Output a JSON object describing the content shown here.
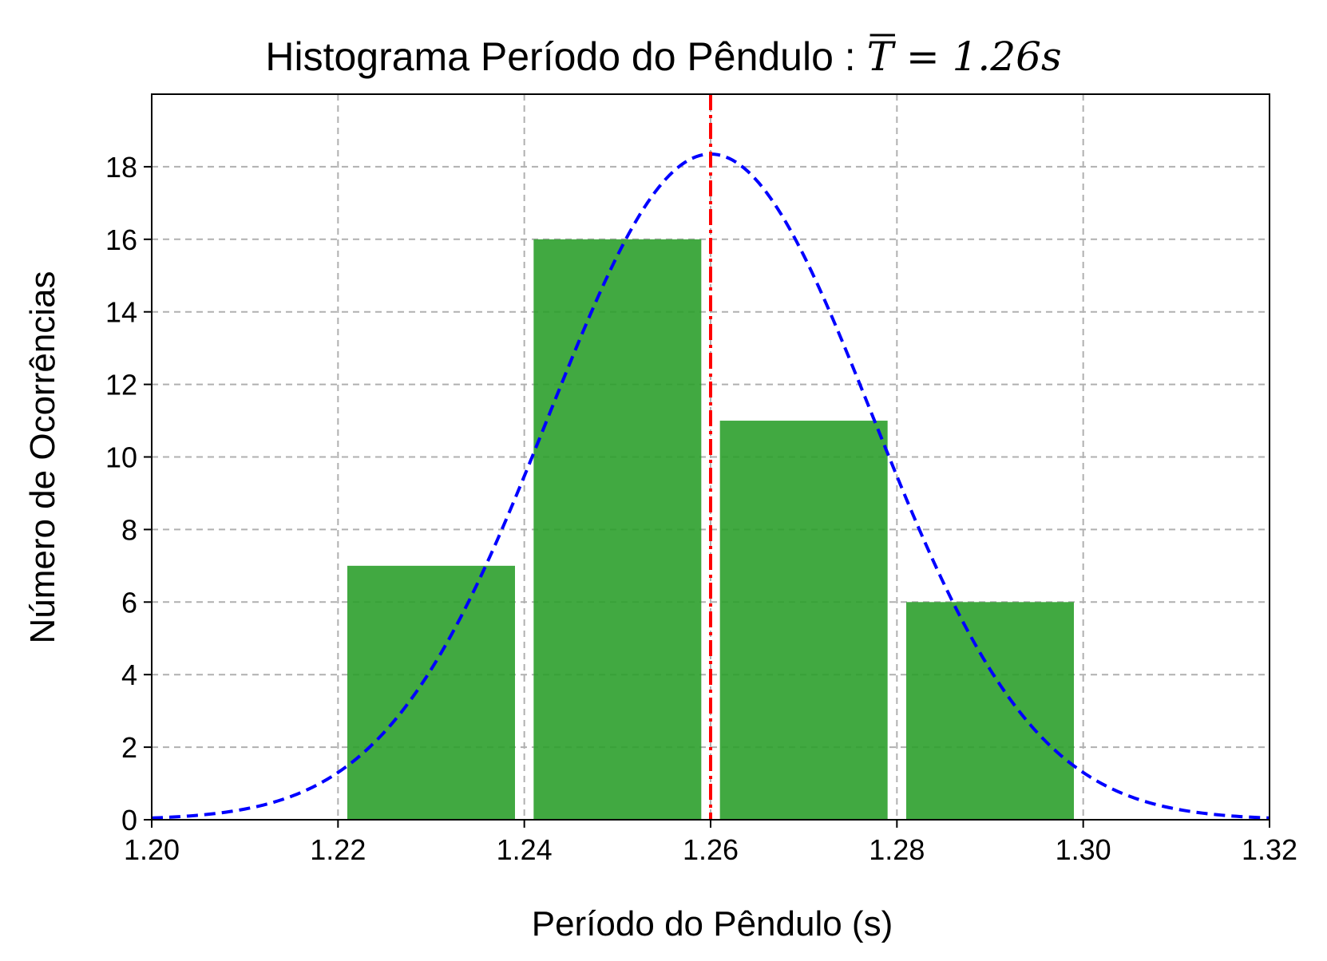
{
  "chart_data": {
    "type": "bar",
    "title_prefix": "Histograma Período do Pêndulo : ",
    "title_math": "T = 1.26s",
    "xlabel": "Período do Pêndulo (s)",
    "ylabel": "Número de Ocorrências",
    "xlim": [
      1.2,
      1.32
    ],
    "ylim": [
      0,
      20
    ],
    "xticks": [
      "1.20",
      "1.22",
      "1.24",
      "1.26",
      "1.28",
      "1.30",
      "1.32"
    ],
    "yticks": [
      "0",
      "2",
      "4",
      "6",
      "8",
      "10",
      "12",
      "14",
      "16",
      "18"
    ],
    "grid": true,
    "bins": [
      {
        "start": 1.22,
        "end": 1.24,
        "count": 7
      },
      {
        "start": 1.24,
        "end": 1.26,
        "count": 16
      },
      {
        "start": 1.26,
        "end": 1.28,
        "count": 11
      },
      {
        "start": 1.28,
        "end": 1.3,
        "count": 6
      }
    ],
    "bar_color": "#2ca02c",
    "mean_line": {
      "x": 1.26,
      "color": "#ff0000",
      "style": "dash-dot"
    },
    "fit_curve": {
      "type": "gaussian",
      "mean": 1.26,
      "sigma": 0.01739,
      "peak": 18.35,
      "color": "#0000ff",
      "style": "dashed"
    }
  }
}
